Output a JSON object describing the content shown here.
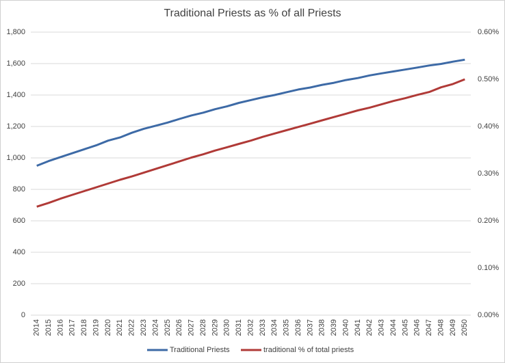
{
  "chart_data": {
    "type": "line",
    "title": "Traditional Priests as % of all Priests",
    "categories": [
      "2014",
      "2015",
      "2016",
      "2017",
      "2018",
      "2019",
      "2020",
      "2021",
      "2022",
      "2023",
      "2024",
      "2025",
      "2026",
      "2027",
      "2028",
      "2029",
      "2030",
      "2031",
      "2032",
      "2033",
      "2034",
      "2035",
      "2036",
      "2037",
      "2038",
      "2039",
      "2040",
      "2041",
      "2042",
      "2043",
      "2044",
      "2045",
      "2046",
      "2047",
      "2048",
      "2049",
      "2050"
    ],
    "series": [
      {
        "name": "Traditional Priests",
        "color": "#3d6aa6",
        "values": [
          950,
          980,
          1005,
          1030,
          1055,
          1080,
          1110,
          1130,
          1160,
          1185,
          1205,
          1225,
          1248,
          1270,
          1288,
          1310,
          1328,
          1350,
          1368,
          1385,
          1400,
          1418,
          1435,
          1448,
          1465,
          1478,
          1495,
          1508,
          1525,
          1538,
          1550,
          1562,
          1575,
          1588,
          1598,
          1612,
          1625
        ]
      },
      {
        "name": "traditional % of total priests",
        "color": "#b03a37",
        "axis": "y2",
        "values": [
          0.23,
          0.238,
          0.247,
          0.255,
          0.263,
          0.271,
          0.279,
          0.287,
          0.294,
          0.302,
          0.31,
          0.318,
          0.326,
          0.334,
          0.341,
          0.349,
          0.356,
          0.363,
          0.37,
          0.378,
          0.385,
          0.392,
          0.399,
          0.406,
          0.413,
          0.42,
          0.427,
          0.434,
          0.44,
          0.447,
          0.454,
          0.46,
          0.467,
          0.473,
          0.483,
          0.49,
          0.5
        ]
      }
    ],
    "ylim": [
      0,
      1800
    ],
    "yticks": [
      0,
      200,
      400,
      600,
      800,
      {
        "value": 1000,
        "label": "1,000"
      },
      {
        "value": 1200,
        "label": "1,200"
      },
      {
        "value": 1400,
        "label": "1,400"
      },
      {
        "value": 1600,
        "label": "1,600"
      },
      {
        "value": 1800,
        "label": "1,800"
      }
    ],
    "y2lim": [
      0,
      0.6
    ],
    "y2ticks": [
      {
        "value": 0,
        "label": "0.00%"
      },
      {
        "value": 0.1,
        "label": "0.10%"
      },
      {
        "value": 0.2,
        "label": "0.20%"
      },
      {
        "value": 0.3,
        "label": "0.30%"
      },
      {
        "value": 0.4,
        "label": "0.40%"
      },
      {
        "value": 0.5,
        "label": "0.50%"
      },
      {
        "value": 0.6,
        "label": "0.60%"
      }
    ],
    "grid": true,
    "legend": "bottom"
  }
}
